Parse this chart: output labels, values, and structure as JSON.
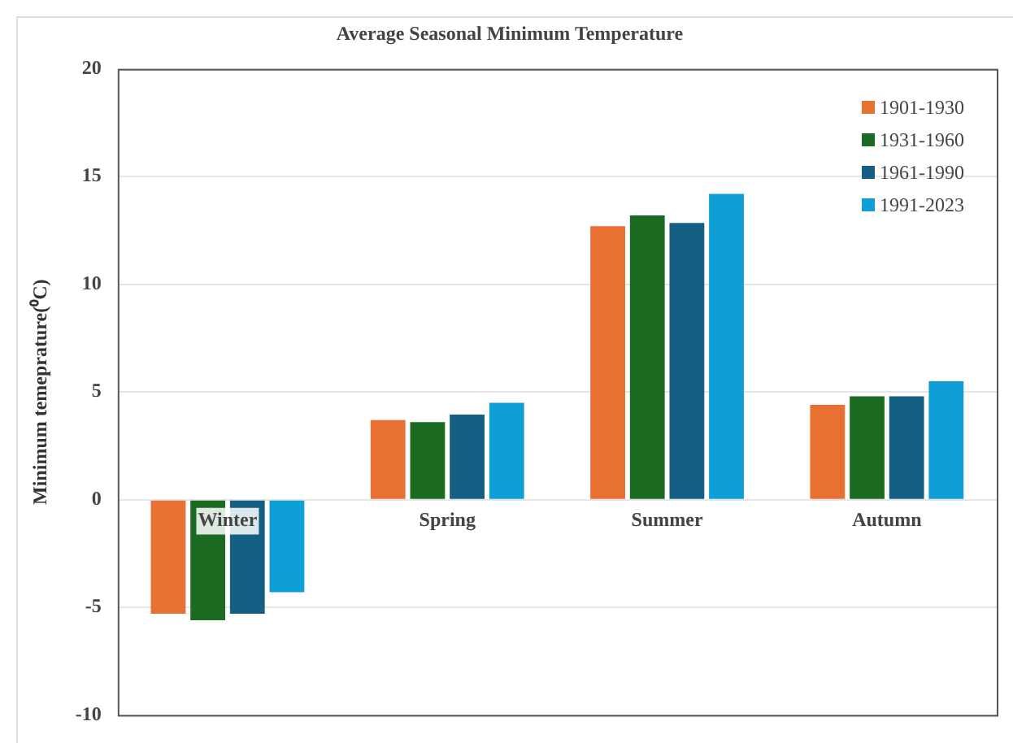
{
  "chart_data": {
    "type": "bar",
    "title": "Average Seasonal Minimum Temperature",
    "ylabel": "Minimum temeprature(⁰C)",
    "categories": [
      "Winter",
      "Spring",
      "Summer",
      "Autumn"
    ],
    "series": [
      {
        "name": "1901-1930",
        "color": "#e87033",
        "values": [
          -5.3,
          3.7,
          12.7,
          4.4
        ]
      },
      {
        "name": "1931-1960",
        "color": "#1c6b23",
        "values": [
          -5.6,
          3.6,
          13.2,
          4.8
        ]
      },
      {
        "name": "1961-1990",
        "color": "#155f82",
        "values": [
          -5.3,
          3.95,
          12.85,
          4.8
        ]
      },
      {
        "name": "1991-2023",
        "color": "#0f9ed5",
        "values": [
          -4.3,
          4.5,
          14.2,
          5.5
        ]
      }
    ],
    "ylim": [
      -10,
      20
    ],
    "yticks": [
      -10,
      -5,
      0,
      5,
      10,
      15,
      20
    ],
    "grid": "y",
    "legend": "top right"
  }
}
